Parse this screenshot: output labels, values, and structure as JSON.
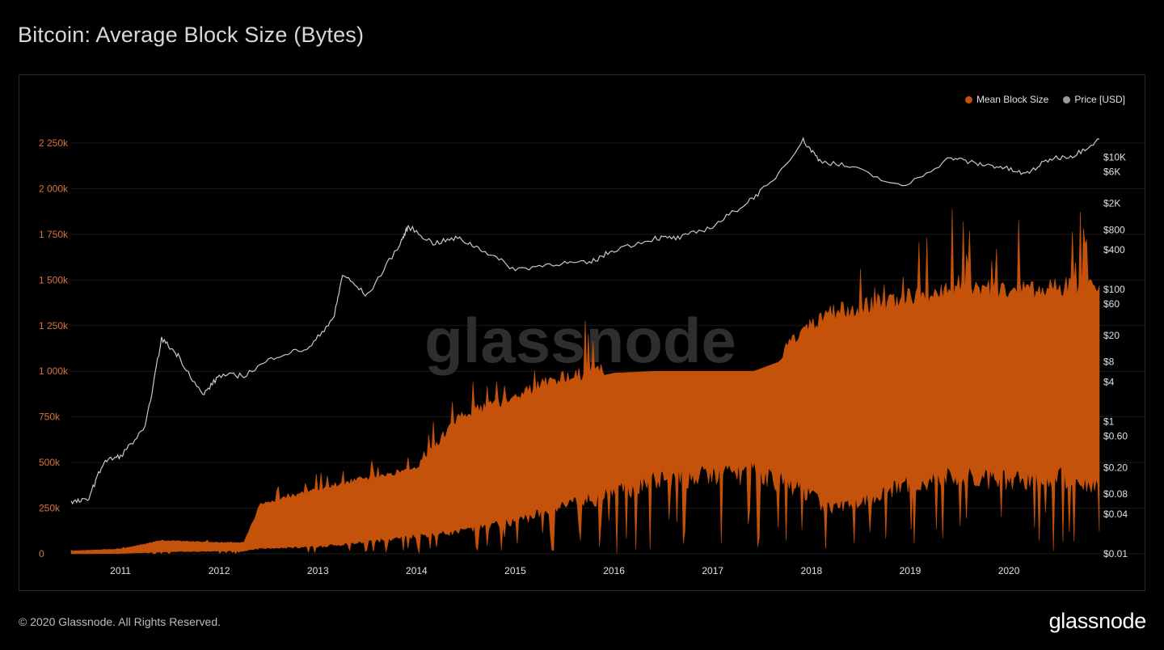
{
  "title": "Bitcoin: Average Block Size (Bytes)",
  "watermark": "glassnode",
  "footer": {
    "copyright": "© 2020 Glassnode. All Rights Reserved.",
    "logo": "glassnode"
  },
  "colors": {
    "block_size": "#c4520a",
    "price": "#c8c8c8",
    "left_axis": "#d9743a",
    "right_axis": "#e0e0e0",
    "background": "#000000"
  },
  "chart_data": {
    "type": "area",
    "title": "Bitcoin: Average Block Size (Bytes)",
    "xlim": [
      "2010-07",
      "2020-12"
    ],
    "ylim_left": [
      0,
      2250000
    ],
    "ylim_right": [
      0.01,
      20000
    ],
    "right_axis_scale": "log",
    "grid": true,
    "legend_position": "top-right",
    "x_ticks": [
      "2011",
      "2012",
      "2013",
      "2014",
      "2015",
      "2016",
      "2017",
      "2018",
      "2019",
      "2020"
    ],
    "y_left_ticks": [
      "0",
      "250k",
      "500k",
      "750k",
      "1 000k",
      "1 250k",
      "1 500k",
      "1 750k",
      "2 000k",
      "2 250k"
    ],
    "y_right_ticks": [
      "$0.01",
      "$0.04",
      "$0.08",
      "$0.20",
      "$0.60",
      "$1",
      "$4",
      "$8",
      "$20",
      "$60",
      "$100",
      "$400",
      "$800",
      "$2K",
      "$6K",
      "$10K"
    ],
    "series": [
      {
        "name": "Mean Block Size",
        "axis": "left",
        "x": [
          "2010-07",
          "2011-01",
          "2011-06",
          "2012-01",
          "2012-04",
          "2012-06",
          "2013-01",
          "2013-06",
          "2014-01",
          "2014-06",
          "2015-01",
          "2015-06",
          "2016-01",
          "2016-06",
          "2017-01",
          "2017-06",
          "2017-09",
          "2017-12",
          "2018-03",
          "2018-06",
          "2019-01",
          "2019-06",
          "2020-01",
          "2020-06",
          "2020-12"
        ],
        "upper": [
          15000,
          25000,
          70000,
          60000,
          60000,
          260000,
          340000,
          390000,
          450000,
          720000,
          830000,
          920000,
          990000,
          1000000,
          1000000,
          1000000,
          1050000,
          1180000,
          1270000,
          1290000,
          1350000,
          1400000,
          1380000,
          1400000,
          1420000
        ],
        "lower": [
          0,
          2000,
          10000,
          15000,
          15000,
          30000,
          40000,
          60000,
          100000,
          120000,
          180000,
          250000,
          330000,
          400000,
          430000,
          450000,
          400000,
          350000,
          250000,
          280000,
          380000,
          420000,
          400000,
          420000,
          380000
        ]
      },
      {
        "name": "Price [USD]",
        "axis": "right",
        "x": [
          "2010-07",
          "2010-09",
          "2010-11",
          "2011-01",
          "2011-04",
          "2011-06",
          "2011-08",
          "2011-11",
          "2012-01",
          "2012-04",
          "2012-08",
          "2012-12",
          "2013-03",
          "2013-04",
          "2013-07",
          "2013-11",
          "2013-12",
          "2014-03",
          "2014-06",
          "2014-09",
          "2015-01",
          "2015-06",
          "2015-10",
          "2016-01",
          "2016-06",
          "2016-09",
          "2017-01",
          "2017-05",
          "2017-08",
          "2017-12",
          "2018-02",
          "2018-06",
          "2018-12",
          "2019-06",
          "2019-09",
          "2019-12",
          "2020-03",
          "2020-06",
          "2020-09",
          "2020-12"
        ],
        "values": [
          0.06,
          0.065,
          0.25,
          0.3,
          0.8,
          18,
          10,
          2.5,
          5,
          5,
          10,
          13,
          40,
          170,
          80,
          500,
          900,
          500,
          600,
          400,
          200,
          250,
          250,
          400,
          600,
          600,
          900,
          2000,
          4000,
          18000,
          9000,
          7000,
          3500,
          10000,
          8000,
          7200,
          5500,
          9500,
          10800,
          19000
        ]
      }
    ]
  }
}
